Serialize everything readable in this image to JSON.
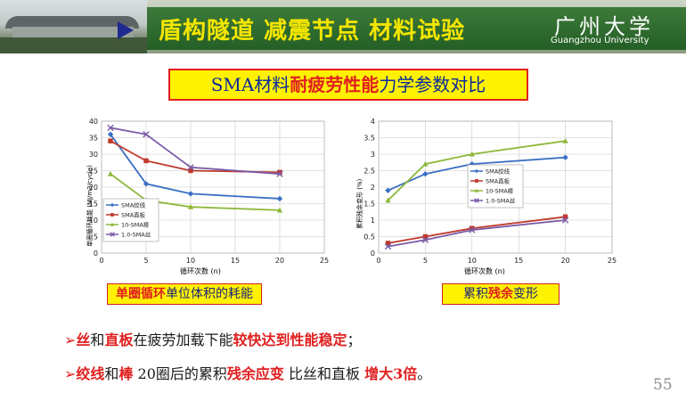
{
  "header": {
    "title": "盾构隧道 减震节点 材料试验",
    "university_cn": "广州大学",
    "university_en": "Guangzhou University"
  },
  "subtitle": {
    "part1": "SMA材料",
    "part2": "耐疲劳性能",
    "part3": "力学参数对比"
  },
  "captions": {
    "left_red": "单圈循环",
    "left_rest": "单位体积的耗能",
    "right_pre": "累积",
    "right_red": "残余",
    "right_post": "变形"
  },
  "bullets": [
    {
      "mark": "➢",
      "segments": [
        {
          "text": "丝",
          "red": true
        },
        {
          "text": "和",
          "red": false
        },
        {
          "text": "直板",
          "red": true
        },
        {
          "text": "在疲劳加载下能",
          "red": false
        },
        {
          "text": "较快达到性能稳定",
          "red": true
        },
        {
          "text": "；",
          "red": false
        }
      ]
    },
    {
      "mark": "➢",
      "segments": [
        {
          "text": "绞线",
          "red": true
        },
        {
          "text": "和",
          "red": false
        },
        {
          "text": "棒",
          "red": true
        },
        {
          "text": " 20圈后的累积",
          "red": false
        },
        {
          "text": "残余应变",
          "red": true
        },
        {
          "text": " 比丝和直板 ",
          "red": false
        },
        {
          "text": "增大3倍",
          "red": true
        },
        {
          "text": "。",
          "red": false
        }
      ]
    }
  ],
  "page_number": "55",
  "chart_data": [
    {
      "type": "line",
      "ylabel": "单圈循环耗能 (MJ/m3/cycle)",
      "xlabel": "循环次数 (n)",
      "xlim": [
        0,
        25
      ],
      "ylim": [
        0,
        40
      ],
      "xticks": [
        0,
        5,
        10,
        15,
        20,
        25
      ],
      "yticks": [
        0,
        5,
        10,
        15,
        20,
        25,
        30,
        35,
        40
      ],
      "x": [
        1,
        5,
        10,
        20
      ],
      "grid": true,
      "legend_position": "bottom-left",
      "series": [
        {
          "name": "SMA绞线",
          "values": [
            36,
            21,
            18,
            16.5
          ],
          "color": "#3a6fc4",
          "marker": "diamond"
        },
        {
          "name": "SMA直板",
          "values": [
            34,
            28,
            25,
            24.5
          ],
          "color": "#c0392b",
          "marker": "square"
        },
        {
          "name": "10-SMA棒",
          "values": [
            24,
            16,
            14,
            13
          ],
          "color": "#8db83a",
          "marker": "triangle"
        },
        {
          "name": "1.0-SMA丝",
          "values": [
            38,
            36,
            26,
            24
          ],
          "color": "#7a5aa8",
          "marker": "x"
        }
      ]
    },
    {
      "type": "line",
      "ylabel": "累积残余变形 (%)",
      "xlabel": "循环次数 (n)",
      "xlim": [
        0,
        25
      ],
      "ylim": [
        0,
        4
      ],
      "xticks": [
        0,
        5,
        10,
        15,
        20,
        25
      ],
      "yticks": [
        0,
        0.5,
        1,
        1.5,
        2,
        2.5,
        3,
        3.5,
        4
      ],
      "x": [
        1,
        5,
        10,
        20
      ],
      "grid": true,
      "legend_position": "center-right",
      "series": [
        {
          "name": "SMA绞线",
          "values": [
            1.9,
            2.4,
            2.7,
            2.9
          ],
          "color": "#3a6fc4",
          "marker": "diamond"
        },
        {
          "name": "SMA直板",
          "values": [
            0.3,
            0.5,
            0.75,
            1.1
          ],
          "color": "#c0392b",
          "marker": "square"
        },
        {
          "name": "10-SMA棒",
          "values": [
            1.6,
            2.7,
            3.0,
            3.4
          ],
          "color": "#8db83a",
          "marker": "triangle"
        },
        {
          "name": "1.0-SMA丝",
          "values": [
            0.2,
            0.4,
            0.7,
            1.0
          ],
          "color": "#7a5aa8",
          "marker": "x"
        }
      ]
    }
  ]
}
